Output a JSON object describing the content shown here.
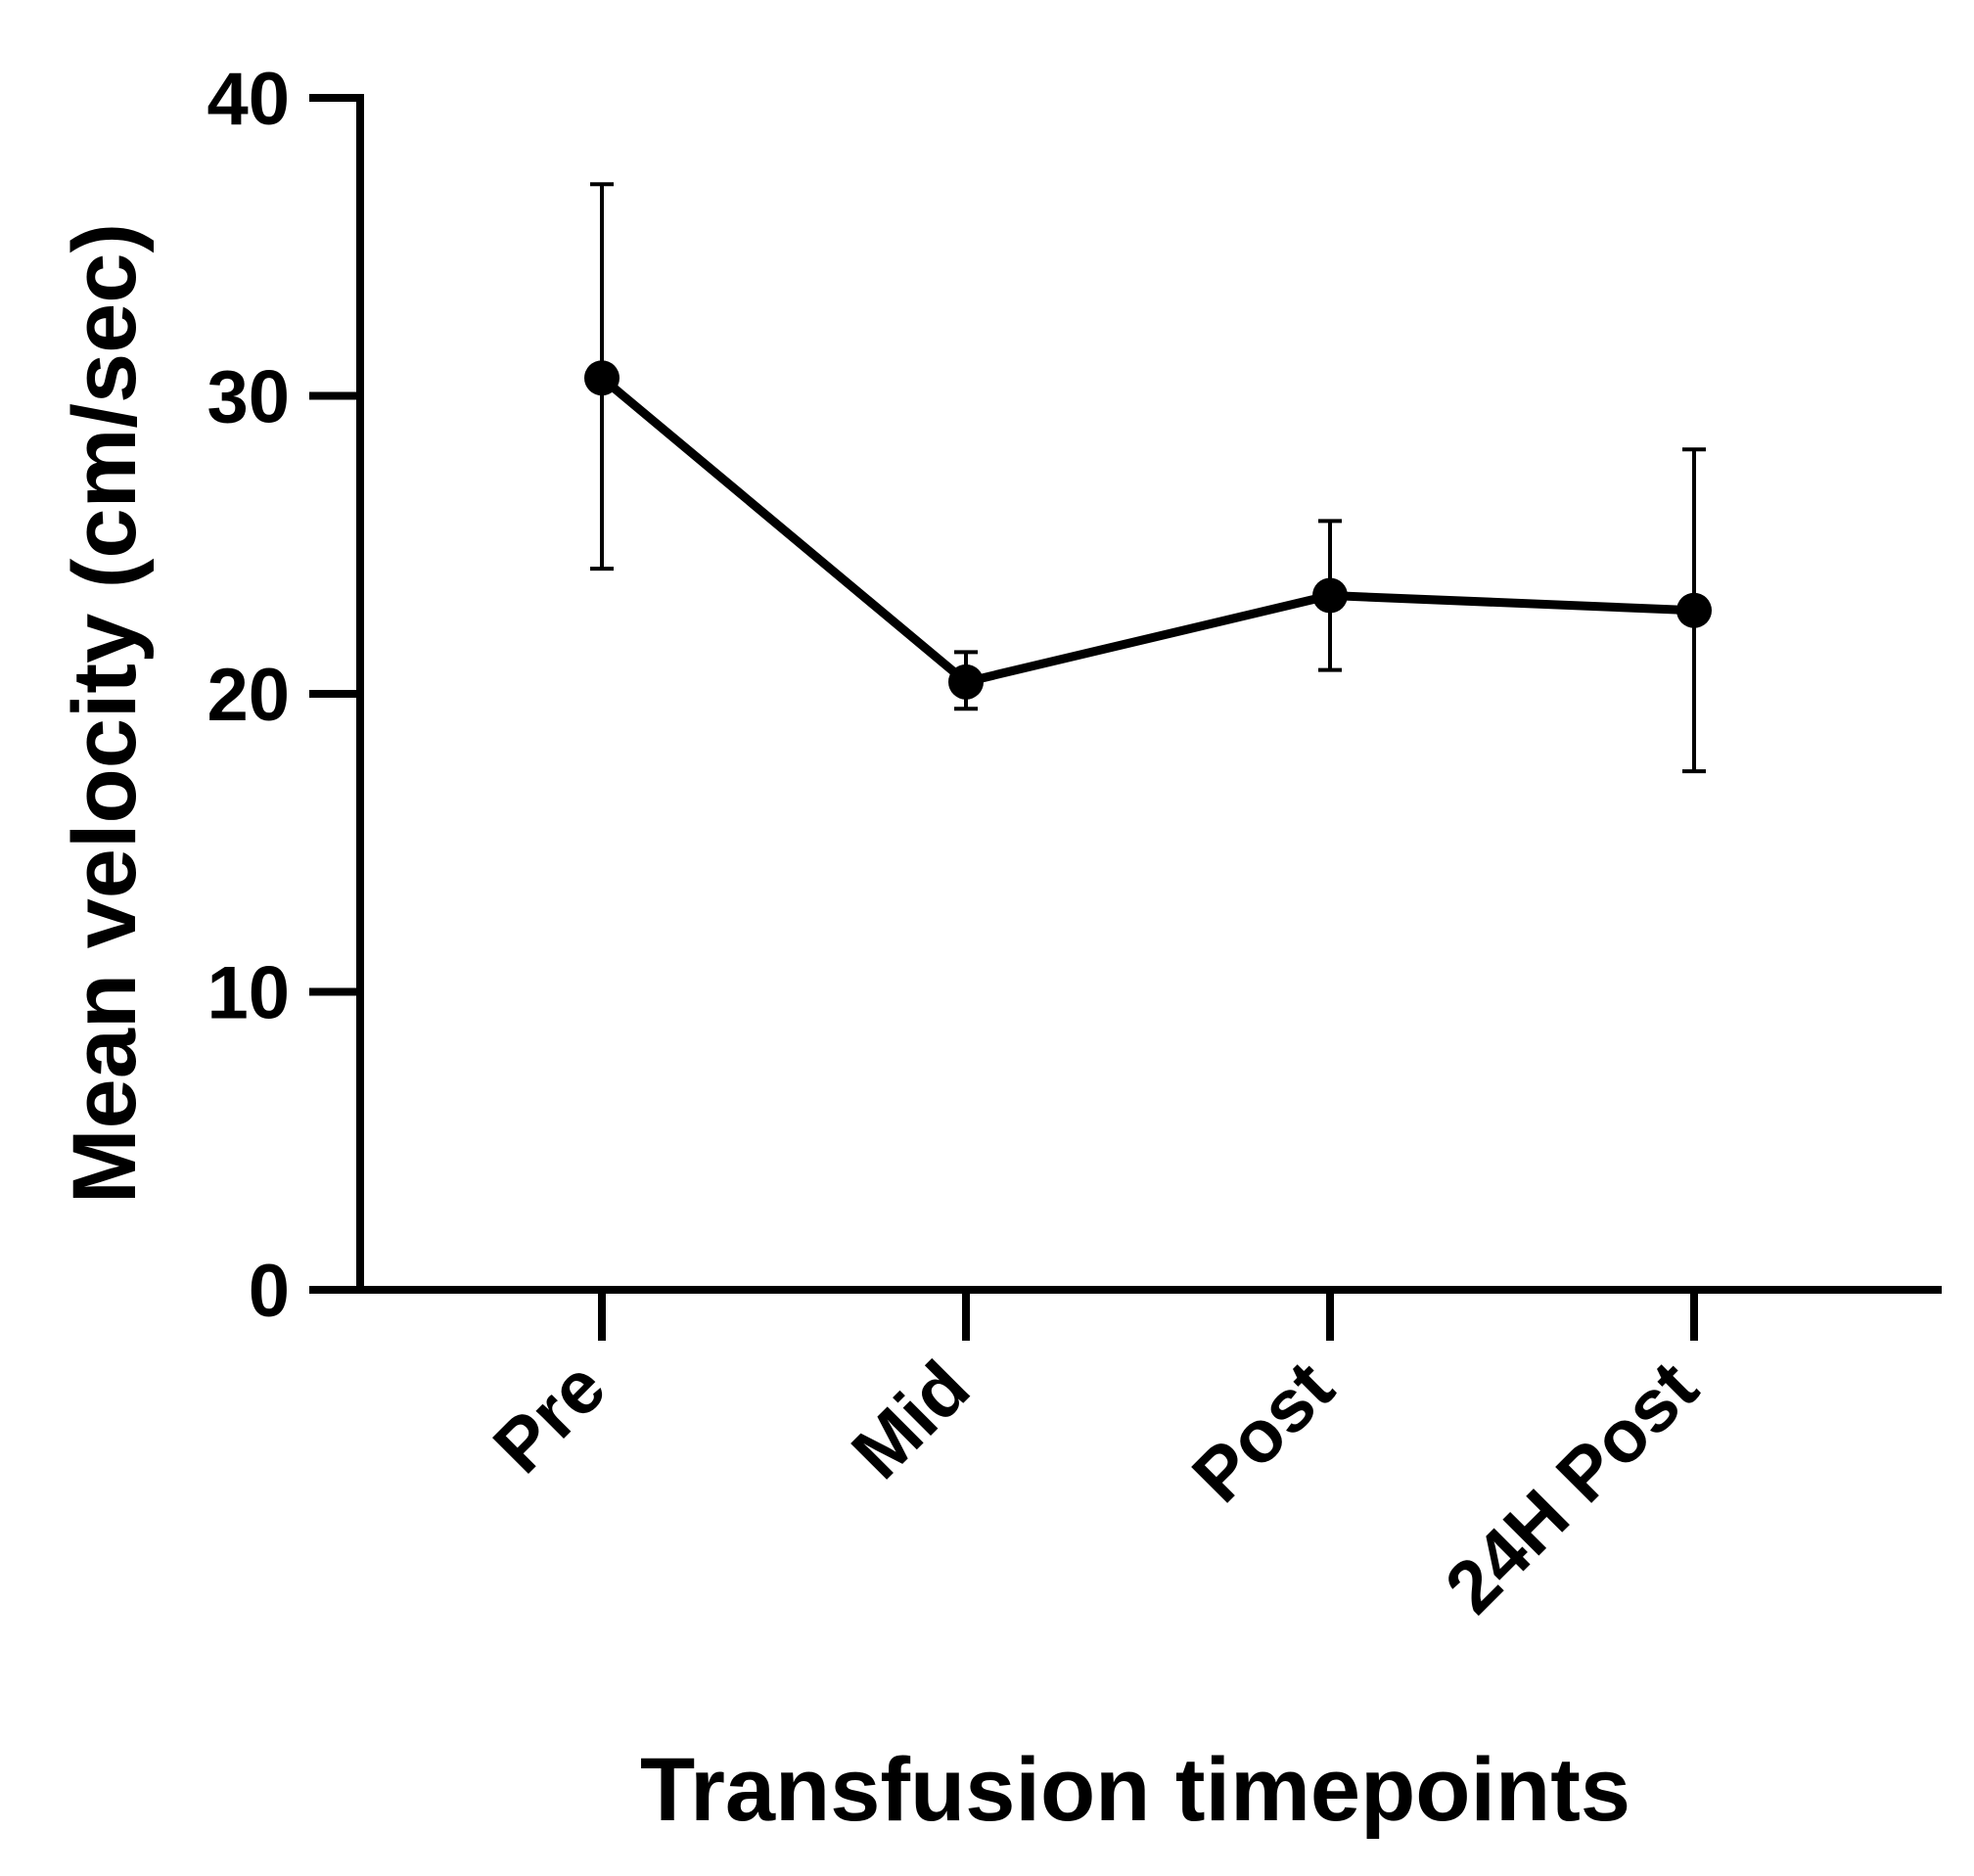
{
  "chart_data": {
    "type": "line",
    "title": "",
    "xlabel": "Transfusion timepoints",
    "ylabel": "Mean velocity (cm/sec)",
    "categories": [
      "Pre",
      "Mid",
      "Post",
      "24H Post"
    ],
    "series": [
      {
        "values": [
          30.6,
          20.4,
          23.3,
          22.8
        ],
        "error_low": [
          24.2,
          19.5,
          20.8,
          17.4
        ],
        "error_high": [
          37.1,
          21.4,
          25.8,
          28.2
        ]
      }
    ],
    "ylim": [
      0,
      40
    ],
    "yticks": [
      "0",
      "10",
      "20",
      "30",
      "40"
    ],
    "grid": false,
    "legend": "none",
    "colors": {
      "line": "#000000",
      "marker": "#000000"
    }
  }
}
